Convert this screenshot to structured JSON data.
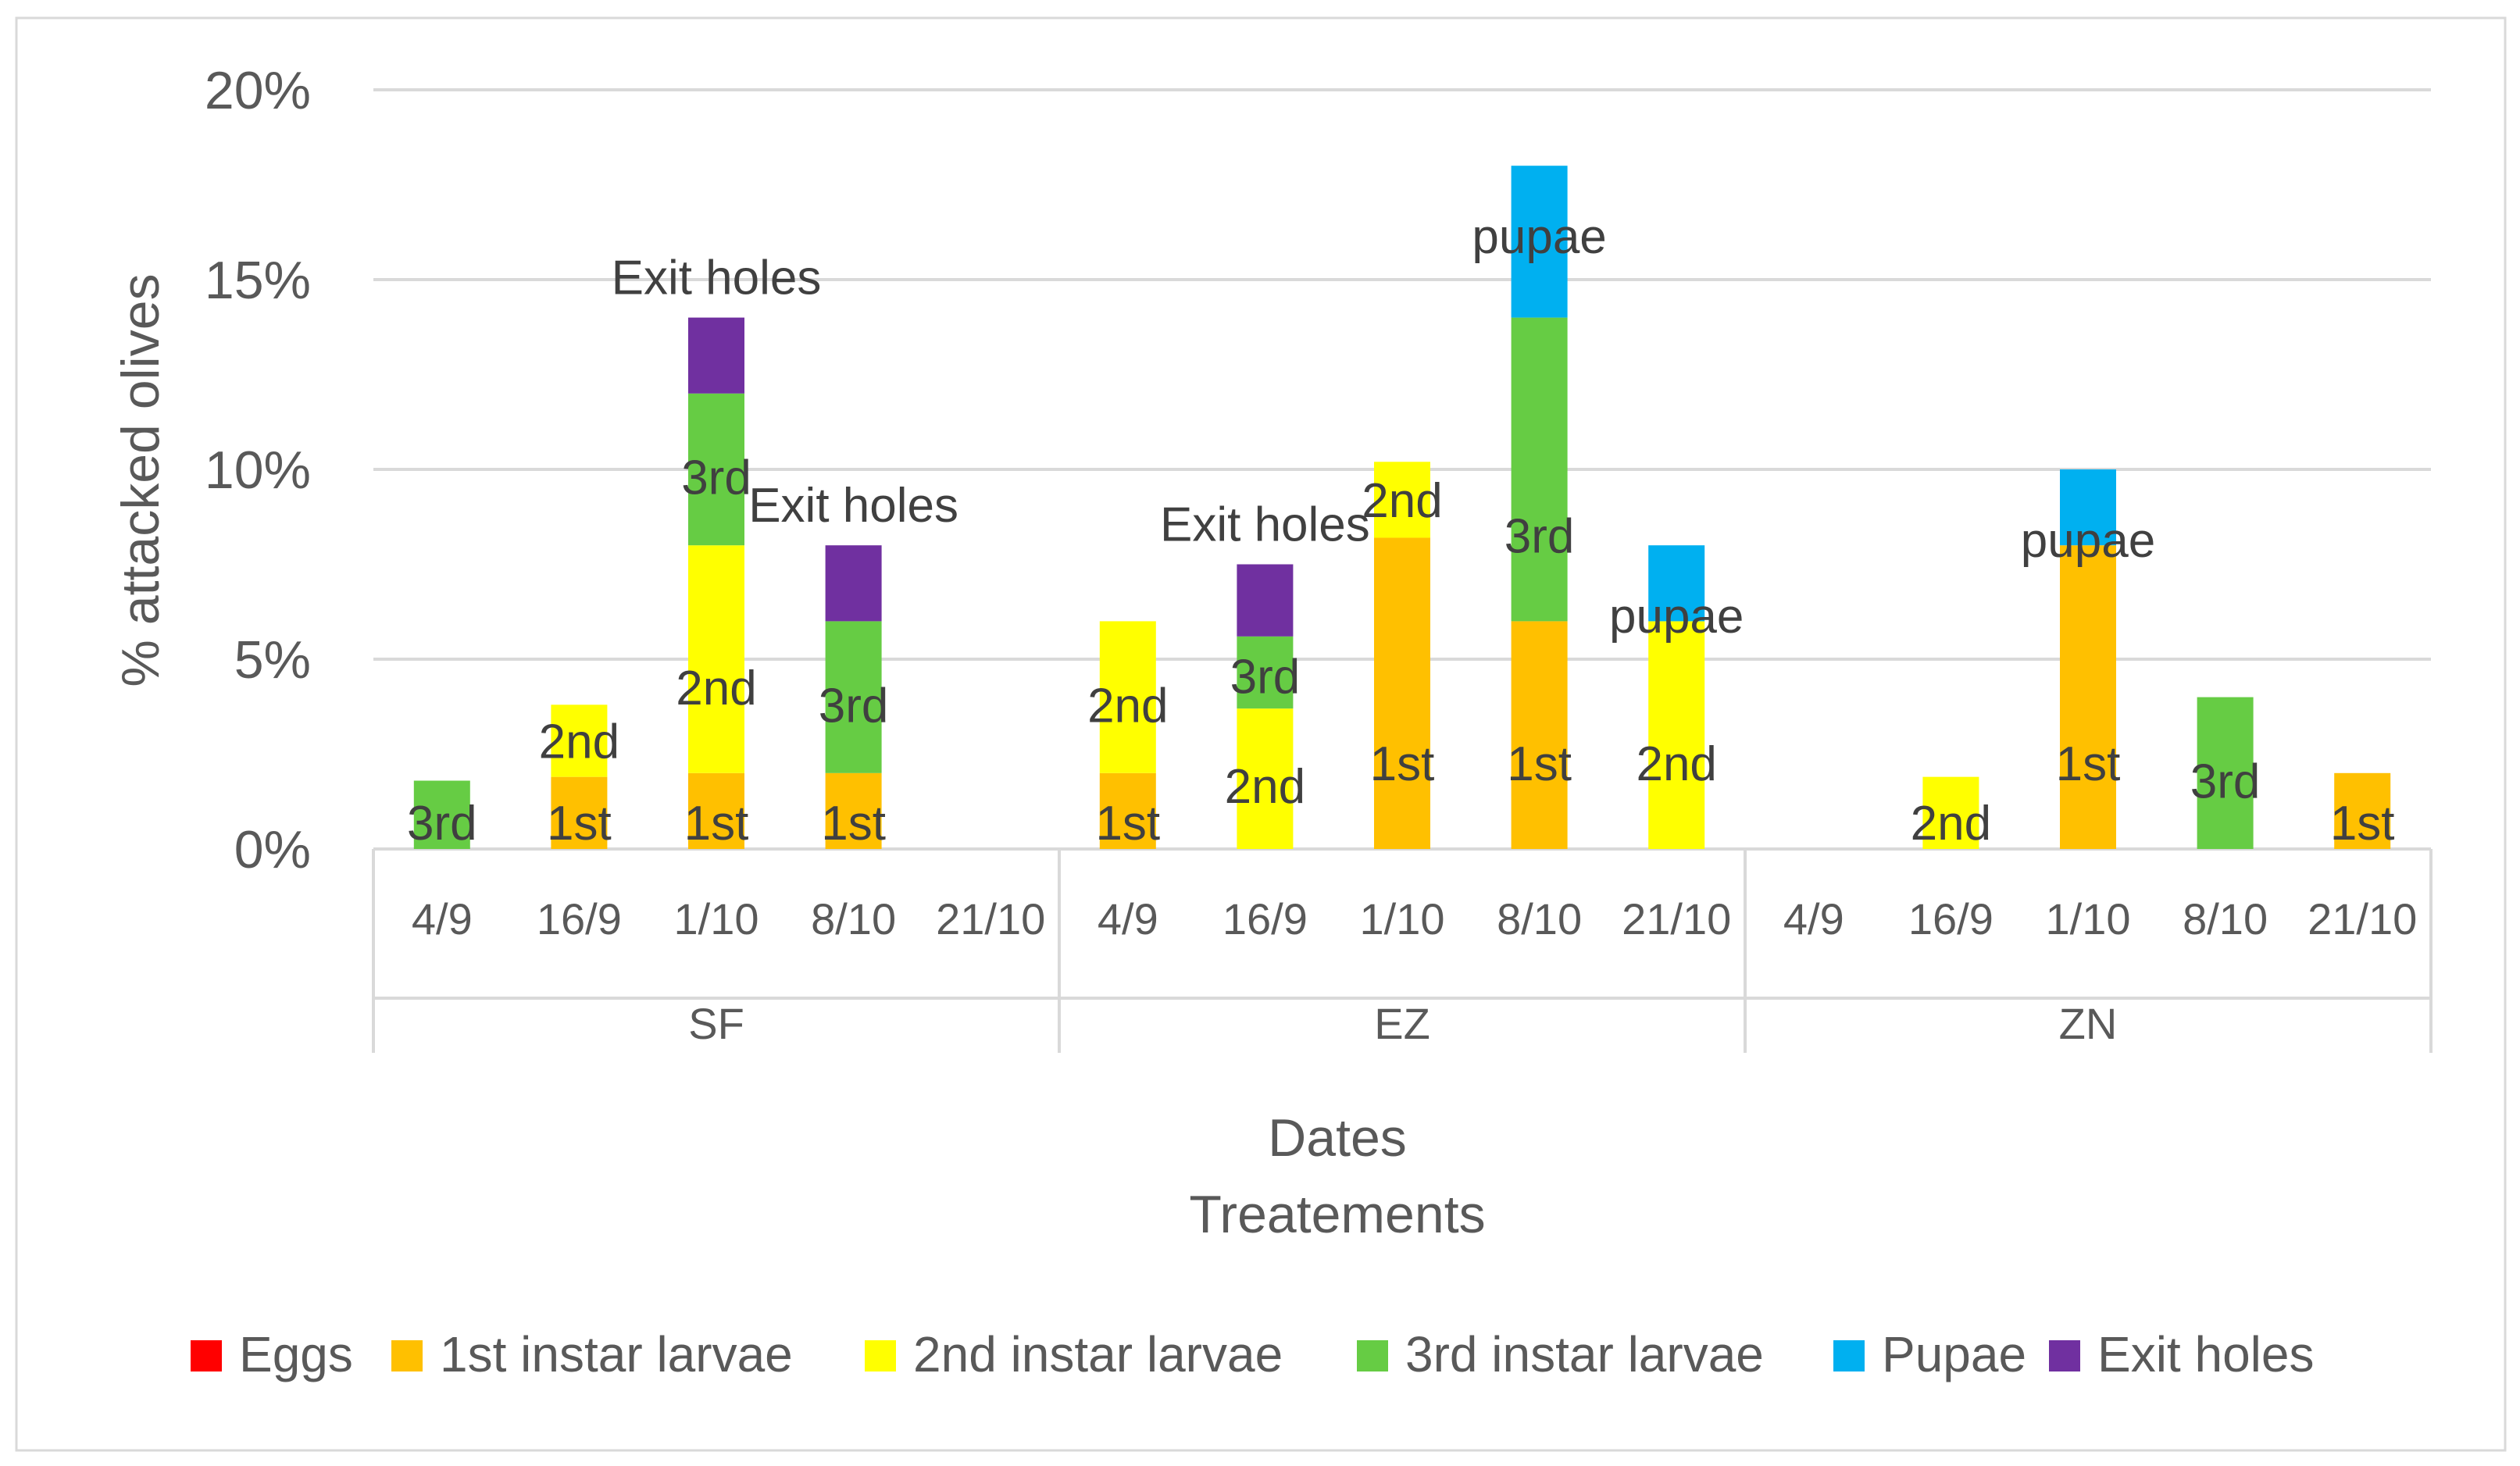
{
  "chart_data": {
    "type": "bar",
    "stacked": true,
    "ylabel": "% attacked olives",
    "xlabel_lines": [
      "Dates",
      "Treatements"
    ],
    "ylim": [
      0,
      20
    ],
    "yticks": [
      0,
      5,
      10,
      15,
      20
    ],
    "ytick_labels": [
      "0%",
      "5%",
      "10%",
      "15%",
      "20%"
    ],
    "grid": true,
    "legend_position": "bottom",
    "series": [
      {
        "name": "Eggs",
        "color": "#ff0000"
      },
      {
        "name": "1st instar larvae",
        "color": "#ffc000"
      },
      {
        "name": "2nd instar larvae",
        "color": "#ffff00"
      },
      {
        "name": "3rd instar larvae",
        "color": "#66cc44"
      },
      {
        "name": "Pupae",
        "color": "#00b0f0"
      },
      {
        "name": "Exit holes",
        "color": "#7030a0"
      }
    ],
    "groups": [
      {
        "name": "SF",
        "dates": [
          {
            "date": "4/9",
            "segments": [
              {
                "series": 3,
                "value": 1.8,
                "label": "3rd"
              }
            ]
          },
          {
            "date": "16/9",
            "segments": [
              {
                "series": 1,
                "value": 1.9,
                "label": "1st"
              },
              {
                "series": 2,
                "value": 1.9,
                "label": "2nd"
              }
            ]
          },
          {
            "date": "1/10",
            "segments": [
              {
                "series": 1,
                "value": 2,
                "label": "1st"
              },
              {
                "series": 2,
                "value": 6,
                "label": "2nd"
              },
              {
                "series": 3,
                "value": 4,
                "label": "3rd"
              },
              {
                "series": 5,
                "value": 2,
                "label": "Exit holes"
              }
            ]
          },
          {
            "date": "8/10",
            "segments": [
              {
                "series": 1,
                "value": 2,
                "label": "1st"
              },
              {
                "series": 3,
                "value": 4,
                "label": "3rd"
              },
              {
                "series": 5,
                "value": 2,
                "label": "Exit holes"
              }
            ]
          },
          {
            "date": "21/10",
            "segments": []
          }
        ]
      },
      {
        "name": "EZ",
        "dates": [
          {
            "date": "4/9",
            "segments": [
              {
                "series": 1,
                "value": 2,
                "label": "1st"
              },
              {
                "series": 2,
                "value": 4,
                "label": "2nd"
              }
            ]
          },
          {
            "date": "16/9",
            "segments": [
              {
                "series": 2,
                "value": 3.7,
                "label": "2nd"
              },
              {
                "series": 3,
                "value": 1.9,
                "label": "3rd"
              },
              {
                "series": 5,
                "value": 1.9,
                "label": "Exit holes"
              }
            ]
          },
          {
            "date": "1/10",
            "segments": [
              {
                "series": 1,
                "value": 8.2,
                "label": "1st"
              },
              {
                "series": 2,
                "value": 2,
                "label": "2nd"
              }
            ]
          },
          {
            "date": "8/10",
            "segments": [
              {
                "series": 1,
                "value": 6,
                "label": "1st"
              },
              {
                "series": 3,
                "value": 8,
                "label": "3rd"
              },
              {
                "series": 4,
                "value": 4,
                "label": "pupae"
              }
            ]
          },
          {
            "date": "21/10",
            "segments": [
              {
                "series": 2,
                "value": 6,
                "label": "2nd"
              },
              {
                "series": 4,
                "value": 2,
                "label": "pupae"
              }
            ]
          }
        ]
      },
      {
        "name": "ZN",
        "dates": [
          {
            "date": "4/9",
            "segments": []
          },
          {
            "date": "16/9",
            "segments": [
              {
                "series": 2,
                "value": 1.9,
                "label": "2nd"
              }
            ]
          },
          {
            "date": "1/10",
            "segments": [
              {
                "series": 1,
                "value": 8,
                "label": "1st"
              },
              {
                "series": 4,
                "value": 2,
                "label": "pupae"
              }
            ]
          },
          {
            "date": "8/10",
            "segments": [
              {
                "series": 3,
                "value": 4,
                "label": "3rd"
              }
            ]
          },
          {
            "date": "21/10",
            "segments": [
              {
                "series": 1,
                "value": 2,
                "label": "1st"
              }
            ]
          }
        ]
      }
    ]
  }
}
